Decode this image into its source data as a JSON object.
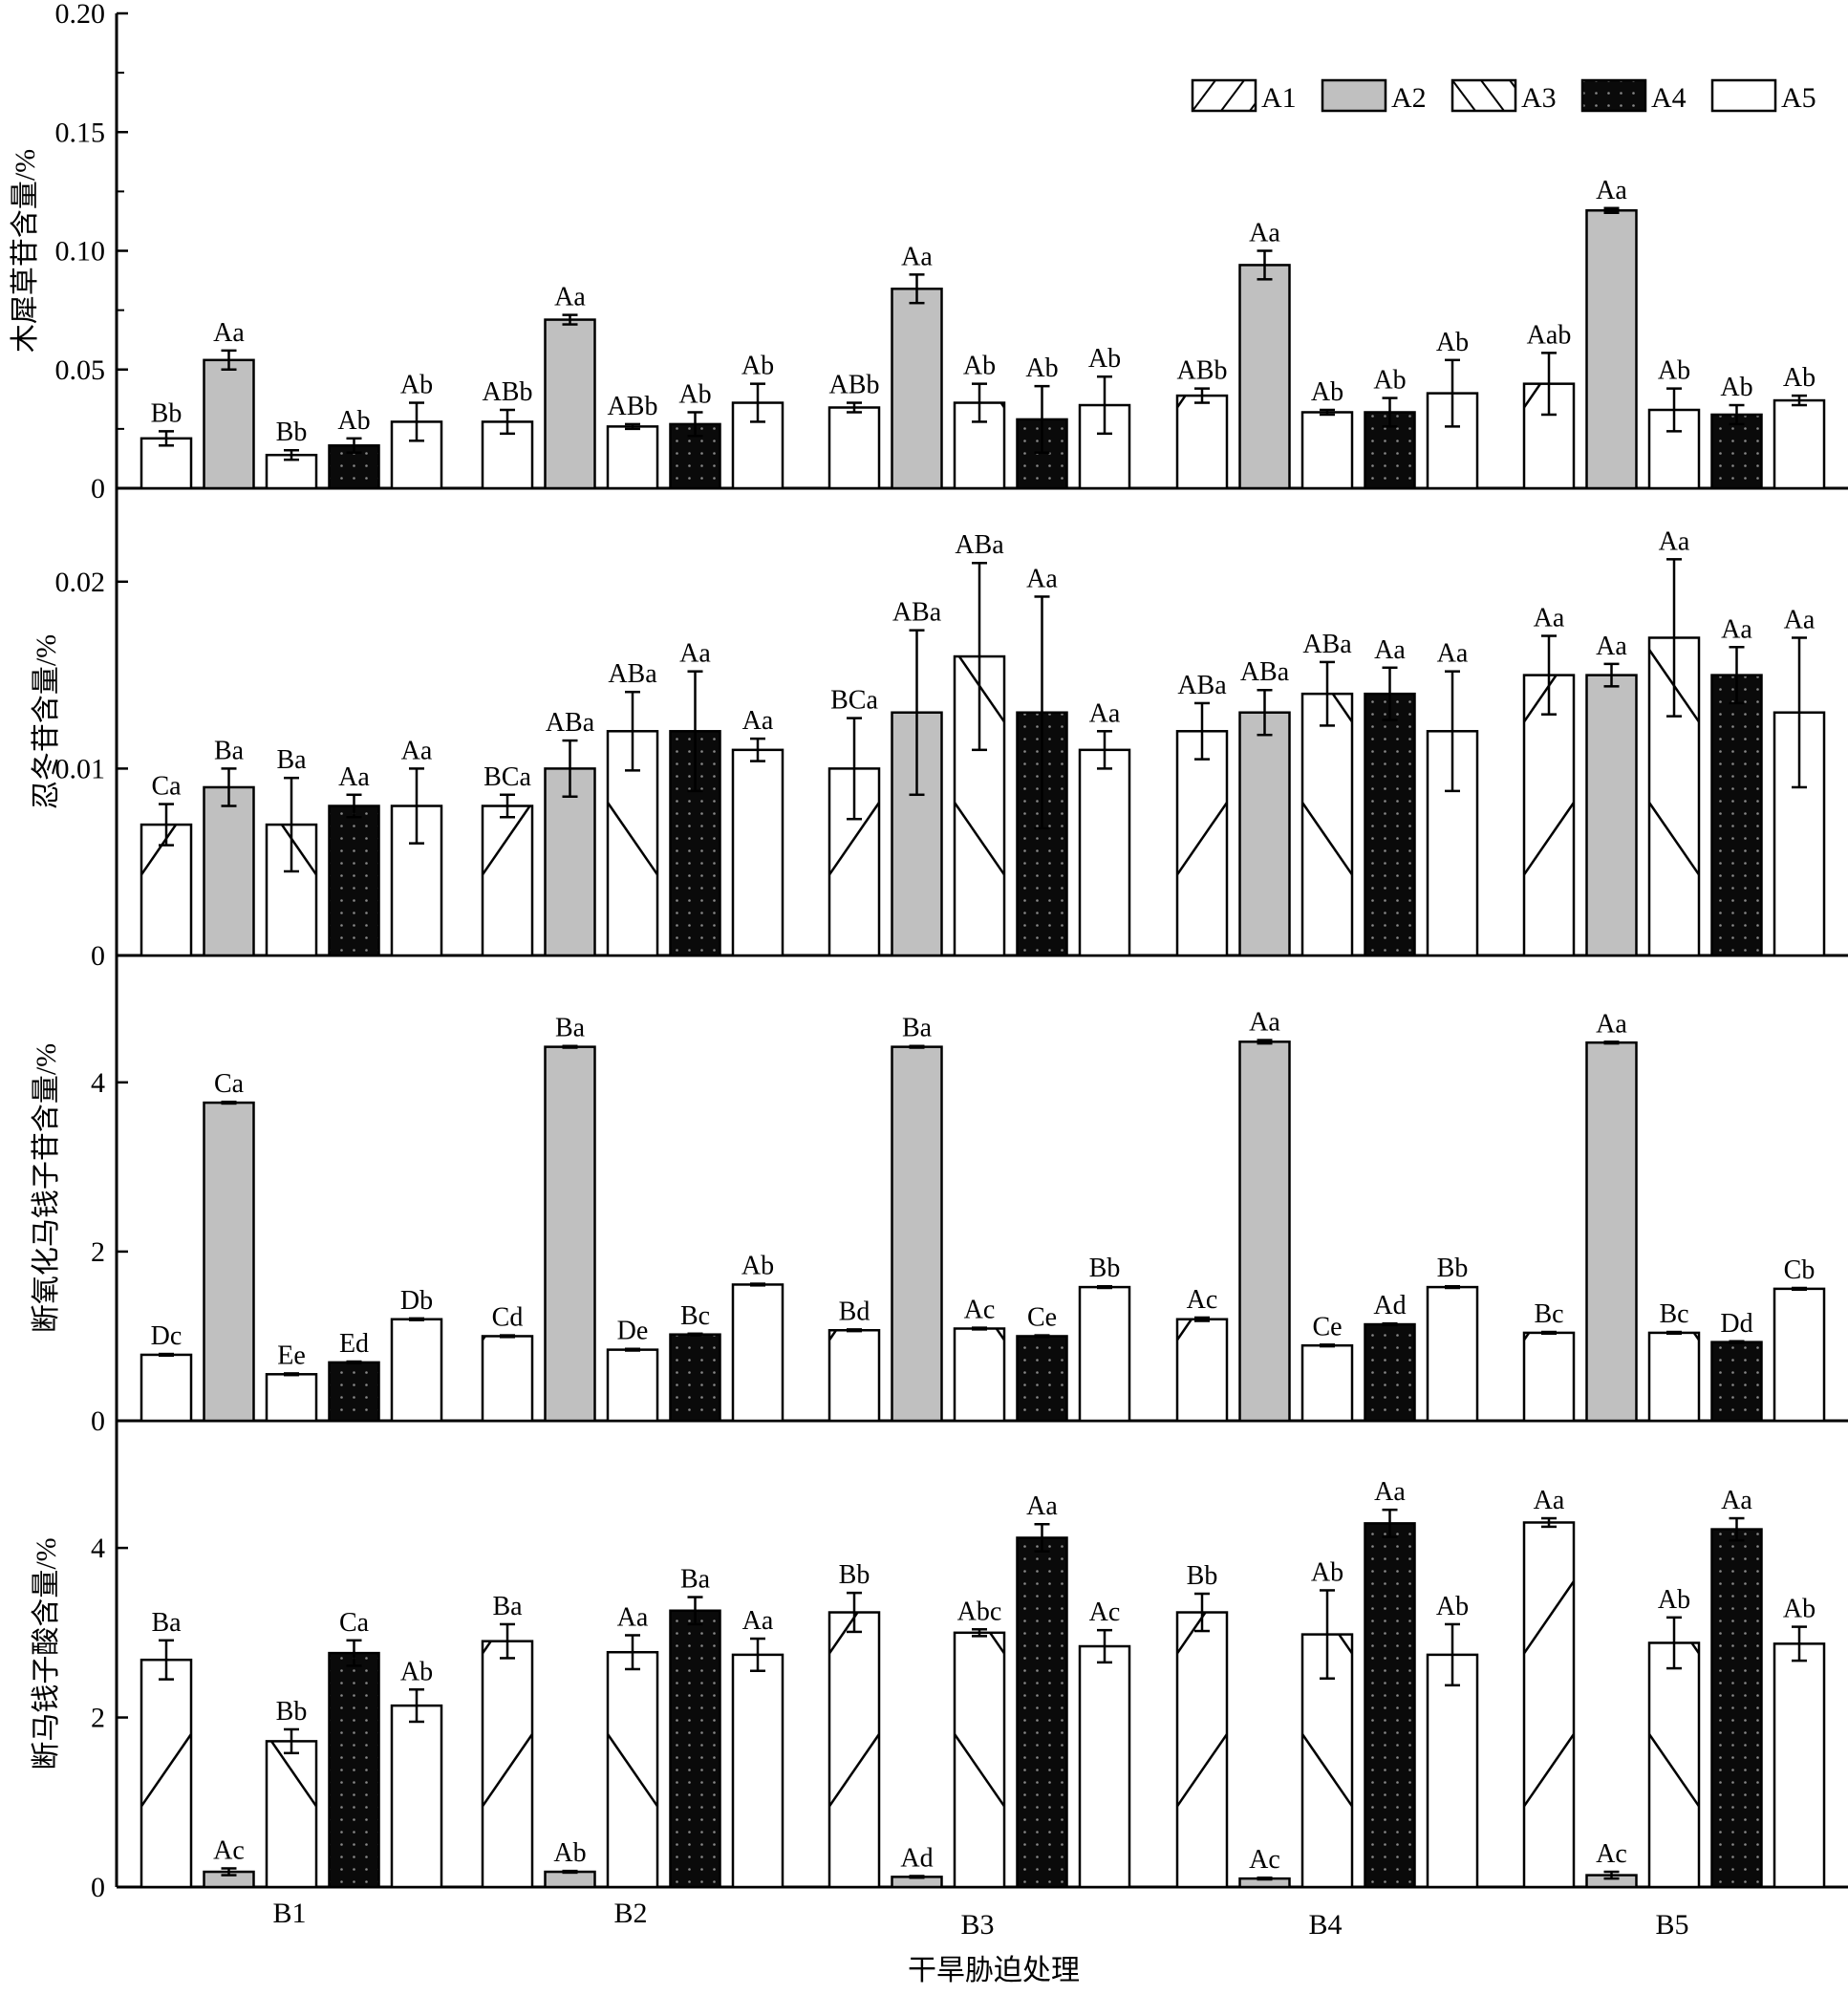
{
  "chart_data": [
    {
      "type": "bar",
      "ylabel": "木犀草苷含量/%",
      "ylim": [
        0,
        0.2
      ],
      "yticks": [
        "0",
        "0.05",
        "0.10",
        "0.15",
        "0.20"
      ],
      "ytick_values": [
        0,
        0.05,
        0.1,
        0.15,
        0.2
      ],
      "minor_ticks": true,
      "categories": [
        "B1",
        "B2",
        "B3",
        "B4",
        "B5"
      ],
      "series": [
        {
          "name": "A1",
          "values": [
            0.021,
            0.028,
            0.034,
            0.039,
            0.044
          ],
          "errors": [
            0.003,
            0.005,
            0.002,
            0.003,
            0.013
          ],
          "labels": [
            "Bb",
            "ABb",
            "ABb",
            "ABb",
            "Aab"
          ]
        },
        {
          "name": "A2",
          "values": [
            0.054,
            0.071,
            0.084,
            0.094,
            0.117
          ],
          "errors": [
            0.004,
            0.002,
            0.006,
            0.006,
            0.001
          ],
          "labels": [
            "Aa",
            "Aa",
            "Aa",
            "Aa",
            "Aa"
          ]
        },
        {
          "name": "A3",
          "values": [
            0.014,
            0.026,
            0.036,
            0.032,
            0.033
          ],
          "errors": [
            0.002,
            0.001,
            0.008,
            0.001,
            0.009
          ],
          "labels": [
            "Bb",
            "ABb",
            "Ab",
            "Ab",
            "Ab"
          ]
        },
        {
          "name": "A4",
          "values": [
            0.018,
            0.027,
            0.029,
            0.032,
            0.031
          ],
          "errors": [
            0.003,
            0.005,
            0.014,
            0.006,
            0.004
          ],
          "labels": [
            "Ab",
            "Ab",
            "Ab",
            "Ab",
            "Ab"
          ]
        },
        {
          "name": "A5",
          "values": [
            0.028,
            0.036,
            0.035,
            0.04,
            0.037
          ],
          "errors": [
            0.008,
            0.008,
            0.012,
            0.014,
            0.002
          ],
          "labels": [
            "Ab",
            "Ab",
            "Ab",
            "Ab",
            "Ab"
          ]
        }
      ],
      "legend": {
        "show": true,
        "position": "top-right"
      }
    },
    {
      "type": "bar",
      "ylabel": "忍冬苷含量/%",
      "ylim": [
        0,
        0.025
      ],
      "yticks": [
        "0",
        "0.01",
        "0.02"
      ],
      "ytick_values": [
        0,
        0.01,
        0.02
      ],
      "minor_ticks": false,
      "categories": [
        "B1",
        "B2",
        "B3",
        "B4",
        "B5"
      ],
      "series": [
        {
          "name": "A1",
          "values": [
            0.007,
            0.008,
            0.01,
            0.012,
            0.015
          ],
          "errors": [
            0.0011,
            0.0006,
            0.0027,
            0.0015,
            0.0021
          ],
          "labels": [
            "Ca",
            "BCa",
            "BCa",
            "ABa",
            "Aa"
          ]
        },
        {
          "name": "A2",
          "values": [
            0.009,
            0.01,
            0.013,
            0.013,
            0.015
          ],
          "errors": [
            0.001,
            0.0015,
            0.0044,
            0.0012,
            0.0006
          ],
          "labels": [
            "Ba",
            "ABa",
            "ABa",
            "ABa",
            "Aa"
          ]
        },
        {
          "name": "A3",
          "values": [
            0.007,
            0.012,
            0.016,
            0.014,
            0.017
          ],
          "errors": [
            0.0025,
            0.0021,
            0.005,
            0.0017,
            0.0042
          ],
          "labels": [
            "Ba",
            "ABa",
            "ABa",
            "ABa",
            "Aa"
          ]
        },
        {
          "name": "A4",
          "values": [
            0.008,
            0.012,
            0.013,
            0.014,
            0.015
          ],
          "errors": [
            0.0006,
            0.0032,
            0.0062,
            0.0014,
            0.0015
          ],
          "labels": [
            "Aa",
            "Aa",
            "Aa",
            "Aa",
            "Aa"
          ]
        },
        {
          "name": "A5",
          "values": [
            0.008,
            0.011,
            0.011,
            0.012,
            0.013
          ],
          "errors": [
            0.002,
            0.0006,
            0.001,
            0.0032,
            0.004
          ],
          "labels": [
            "Aa",
            "Aa",
            "Aa",
            "Aa",
            "Aa"
          ]
        }
      ]
    },
    {
      "type": "bar",
      "ylabel": "断氧化马钱子苷含量/%",
      "ylim": [
        0,
        5.5
      ],
      "yticks": [
        "0",
        "2",
        "4"
      ],
      "ytick_values": [
        0,
        2,
        4
      ],
      "minor_ticks": false,
      "categories": [
        "B1",
        "B2",
        "B3",
        "B4",
        "B5"
      ],
      "series": [
        {
          "name": "A1",
          "values": [
            0.78,
            1.0,
            1.07,
            1.2,
            1.04
          ],
          "errors": [
            0.01,
            0.01,
            0.01,
            0.02,
            0.01
          ],
          "labels": [
            "Dc",
            "Cd",
            "Bd",
            "Ac",
            "Bc"
          ]
        },
        {
          "name": "A2",
          "values": [
            3.76,
            4.42,
            4.42,
            4.48,
            4.47
          ],
          "errors": [
            0.01,
            0.01,
            0.01,
            0.02,
            0.01
          ],
          "labels": [
            "Ca",
            "Ba",
            "Ba",
            "Aa",
            "Aa"
          ]
        },
        {
          "name": "A3",
          "values": [
            0.55,
            0.84,
            1.09,
            0.89,
            1.04
          ],
          "errors": [
            0.01,
            0.01,
            0.01,
            0.01,
            0.01
          ],
          "labels": [
            "Ee",
            "De",
            "Ac",
            "Ce",
            "Bc"
          ]
        },
        {
          "name": "A4",
          "values": [
            0.69,
            1.02,
            1.0,
            1.14,
            0.93
          ],
          "errors": [
            0.01,
            0.01,
            0.01,
            0.01,
            0.01
          ],
          "labels": [
            "Ed",
            "Bc",
            "Ce",
            "Ad",
            "Dd"
          ]
        },
        {
          "name": "A5",
          "values": [
            1.2,
            1.61,
            1.58,
            1.58,
            1.56
          ],
          "errors": [
            0.01,
            0.01,
            0.01,
            0.01,
            0.01
          ],
          "labels": [
            "Db",
            "Ab",
            "Bb",
            "Bb",
            "Cb"
          ]
        }
      ]
    },
    {
      "type": "bar",
      "ylabel": "断马钱子酸含量/%",
      "ylim": [
        0,
        5.5
      ],
      "yticks": [
        "0",
        "2",
        "4"
      ],
      "ytick_values": [
        0,
        2,
        4
      ],
      "minor_ticks": false,
      "categories": [
        "B1",
        "B2",
        "B3",
        "B4",
        "B5"
      ],
      "xlabel": "干旱胁迫处理",
      "series": [
        {
          "name": "A1",
          "values": [
            2.68,
            2.9,
            3.24,
            3.24,
            4.3
          ],
          "errors": [
            0.23,
            0.2,
            0.23,
            0.22,
            0.05
          ],
          "labels": [
            "Ba",
            "Ba",
            "Bb",
            "Bb",
            "Aa"
          ]
        },
        {
          "name": "A2",
          "values": [
            0.18,
            0.18,
            0.12,
            0.1,
            0.14
          ],
          "errors": [
            0.04,
            0.01,
            0.01,
            0.01,
            0.04
          ],
          "labels": [
            "Ac",
            "Ab",
            "Ad",
            "Ac",
            "Ac"
          ]
        },
        {
          "name": "A3",
          "values": [
            1.72,
            2.77,
            3.0,
            2.98,
            2.88
          ],
          "errors": [
            0.14,
            0.2,
            0.04,
            0.52,
            0.3
          ],
          "labels": [
            "Bb",
            "Aa",
            "Abc",
            "Ab",
            "Ab"
          ]
        },
        {
          "name": "A4",
          "values": [
            2.76,
            3.26,
            4.12,
            4.29,
            4.22
          ],
          "errors": [
            0.15,
            0.16,
            0.16,
            0.16,
            0.13
          ],
          "labels": [
            "Ca",
            "Ba",
            "Aa",
            "Aa",
            "Aa"
          ]
        },
        {
          "name": "A5",
          "values": [
            2.14,
            2.74,
            2.84,
            2.74,
            2.87
          ],
          "errors": [
            0.19,
            0.19,
            0.19,
            0.36,
            0.2
          ],
          "labels": [
            "Ab",
            "Aa",
            "Ac",
            "Ab",
            "Ab"
          ]
        }
      ]
    }
  ],
  "legend": {
    "entries": [
      {
        "name": "A1",
        "pattern": "forward-hatch"
      },
      {
        "name": "A2",
        "pattern": "gray-fill"
      },
      {
        "name": "A3",
        "pattern": "back-hatch"
      },
      {
        "name": "A4",
        "pattern": "black-dotted"
      },
      {
        "name": "A5",
        "pattern": "white-fill"
      }
    ]
  },
  "colors": {
    "A2_fill": "#c0c0c0",
    "A4_fill": "#0a0a0a",
    "axis": "#000000"
  }
}
